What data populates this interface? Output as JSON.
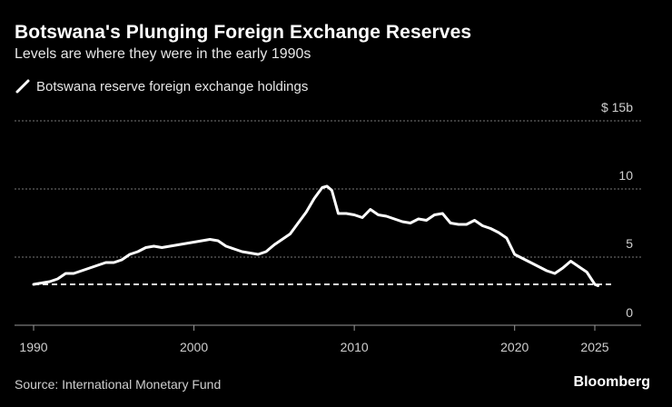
{
  "title": "Botswana's Plunging Foreign Exchange Reserves",
  "subtitle": "Levels are where they were in the early 1990s",
  "legend_label": "Botswana reserve foreign exchange holdings",
  "source": "Source: International Monetary Fund",
  "brand": "Bloomberg",
  "colors": {
    "background": "#000000",
    "line": "#ffffff",
    "grid": "#777777",
    "text": "#cfcfcf"
  },
  "chart_data": {
    "type": "line",
    "title": "Botswana's Plunging Foreign Exchange Reserves",
    "subtitle": "Levels are where they were in the early 1990s",
    "xlabel": "",
    "ylabel": "",
    "xlim": [
      1990,
      2026.5
    ],
    "ylim": [
      0,
      15
    ],
    "x_ticks": [
      {
        "value": 1990,
        "label": "1990"
      },
      {
        "value": 2000,
        "label": "2000"
      },
      {
        "value": 2010,
        "label": "2010"
      },
      {
        "value": 2020,
        "label": "2020"
      },
      {
        "value": 2025,
        "label": "2025"
      }
    ],
    "y_ticks": [
      {
        "value": 15,
        "label": "$ 15b"
      },
      {
        "value": 10,
        "label": "10"
      },
      {
        "value": 5,
        "label": "5"
      },
      {
        "value": 0,
        "label": "0"
      }
    ],
    "reference_line": {
      "value": 3.0,
      "style": "dashed",
      "x_range": [
        1990,
        2026.2
      ]
    },
    "series": [
      {
        "name": "Botswana reserve foreign exchange holdings",
        "x": [
          1990,
          1990.5,
          1991,
          1991.5,
          1992,
          1992.5,
          1993,
          1993.5,
          1994,
          1994.5,
          1995,
          1995.5,
          1996,
          1996.5,
          1997,
          1997.5,
          1998,
          1998.5,
          1999,
          1999.5,
          2000,
          2000.5,
          2001,
          2001.5,
          2002,
          2002.5,
          2003,
          2003.5,
          2004,
          2004.5,
          2005,
          2005.5,
          2006,
          2006.5,
          2007,
          2007.5,
          2008,
          2008.3,
          2008.6,
          2009,
          2009.5,
          2010,
          2010.5,
          2011,
          2011.5,
          2012,
          2012.5,
          2013,
          2013.5,
          2014,
          2014.5,
          2015,
          2015.5,
          2016,
          2016.5,
          2017,
          2017.5,
          2018,
          2018.5,
          2019,
          2019.5,
          2020,
          2020.5,
          2021,
          2021.5,
          2022,
          2022.5,
          2023,
          2023.5,
          2024,
          2024.5,
          2025,
          2025.2
        ],
        "values": [
          3.0,
          3.1,
          3.2,
          3.4,
          3.8,
          3.8,
          4.0,
          4.2,
          4.4,
          4.6,
          4.6,
          4.8,
          5.2,
          5.4,
          5.7,
          5.8,
          5.7,
          5.8,
          5.9,
          6.0,
          6.1,
          6.2,
          6.3,
          6.2,
          5.8,
          5.6,
          5.4,
          5.3,
          5.2,
          5.4,
          5.9,
          6.3,
          6.7,
          7.5,
          8.3,
          9.3,
          10.1,
          10.2,
          9.9,
          8.2,
          8.2,
          8.1,
          7.9,
          8.5,
          8.1,
          8.0,
          7.8,
          7.6,
          7.5,
          7.8,
          7.7,
          8.1,
          8.2,
          7.5,
          7.4,
          7.4,
          7.7,
          7.3,
          7.1,
          6.8,
          6.4,
          5.2,
          4.9,
          4.6,
          4.3,
          4.0,
          3.8,
          4.2,
          4.7,
          4.3,
          3.9,
          3.0,
          2.9
        ]
      }
    ]
  }
}
